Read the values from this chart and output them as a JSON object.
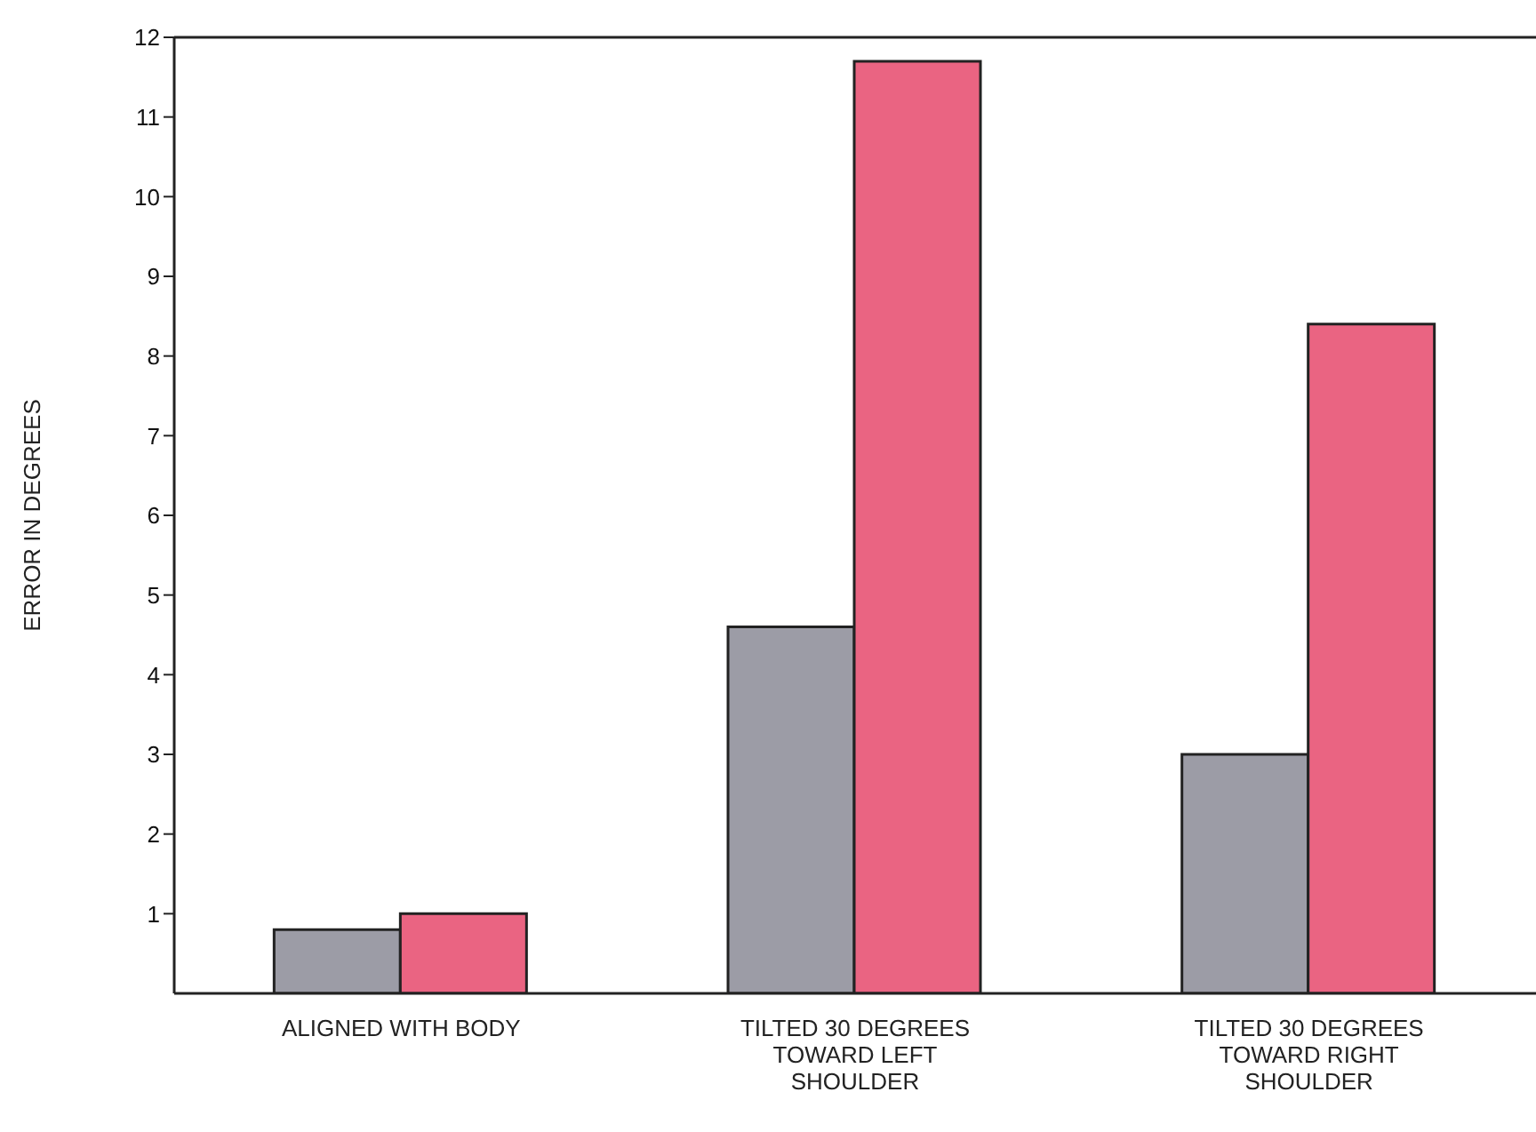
{
  "chart_data": {
    "type": "bar",
    "ylabel": "ERROR IN DEGREES",
    "categories": [
      "ALIGNED WITH BODY",
      "TILTED 30 DEGREES TOWARD LEFT SHOULDER",
      "TILTED 30 DEGREES TOWARD RIGHT SHOULDER"
    ],
    "series": [
      {
        "color": "#9c9ca6",
        "values": [
          0.8,
          4.6,
          3.0
        ]
      },
      {
        "color": "#ea6482",
        "values": [
          1.0,
          11.7,
          8.4
        ]
      }
    ],
    "ylim": [
      0,
      12
    ],
    "yticks": [
      1,
      2,
      3,
      4,
      5,
      6,
      7,
      8,
      9,
      10,
      11,
      12
    ],
    "grid": false,
    "legend": false
  }
}
